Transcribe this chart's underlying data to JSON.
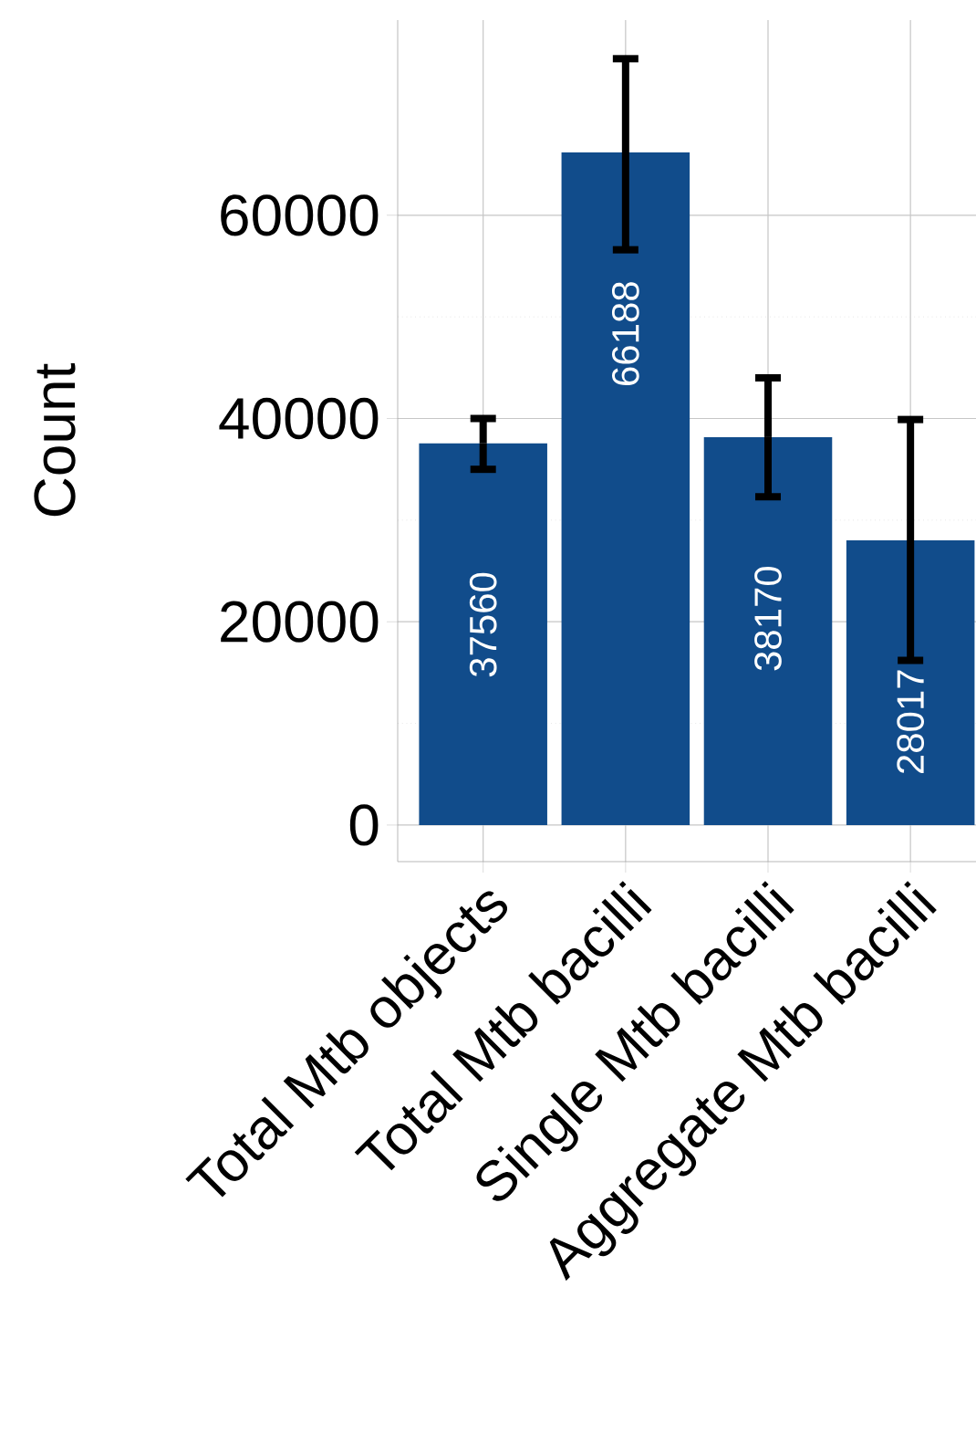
{
  "chart_data": {
    "type": "bar",
    "ylabel": "Count",
    "categories": [
      "Total Mtb objects",
      "Total Mtb bacilli",
      "Single Mtb bacilli",
      "Aggregate Mtb bacilli"
    ],
    "values": [
      37560,
      66188,
      38170,
      28017
    ],
    "errors": [
      [
        35000,
        40000
      ],
      [
        56600,
        75400
      ],
      [
        32300,
        44000
      ],
      [
        16200,
        39900
      ]
    ],
    "color": "#114c8b",
    "ylim": [
      -3600,
      79200
    ],
    "yticks": [
      0,
      20000,
      40000,
      60000
    ],
    "grid": true,
    "data_labels": true
  }
}
